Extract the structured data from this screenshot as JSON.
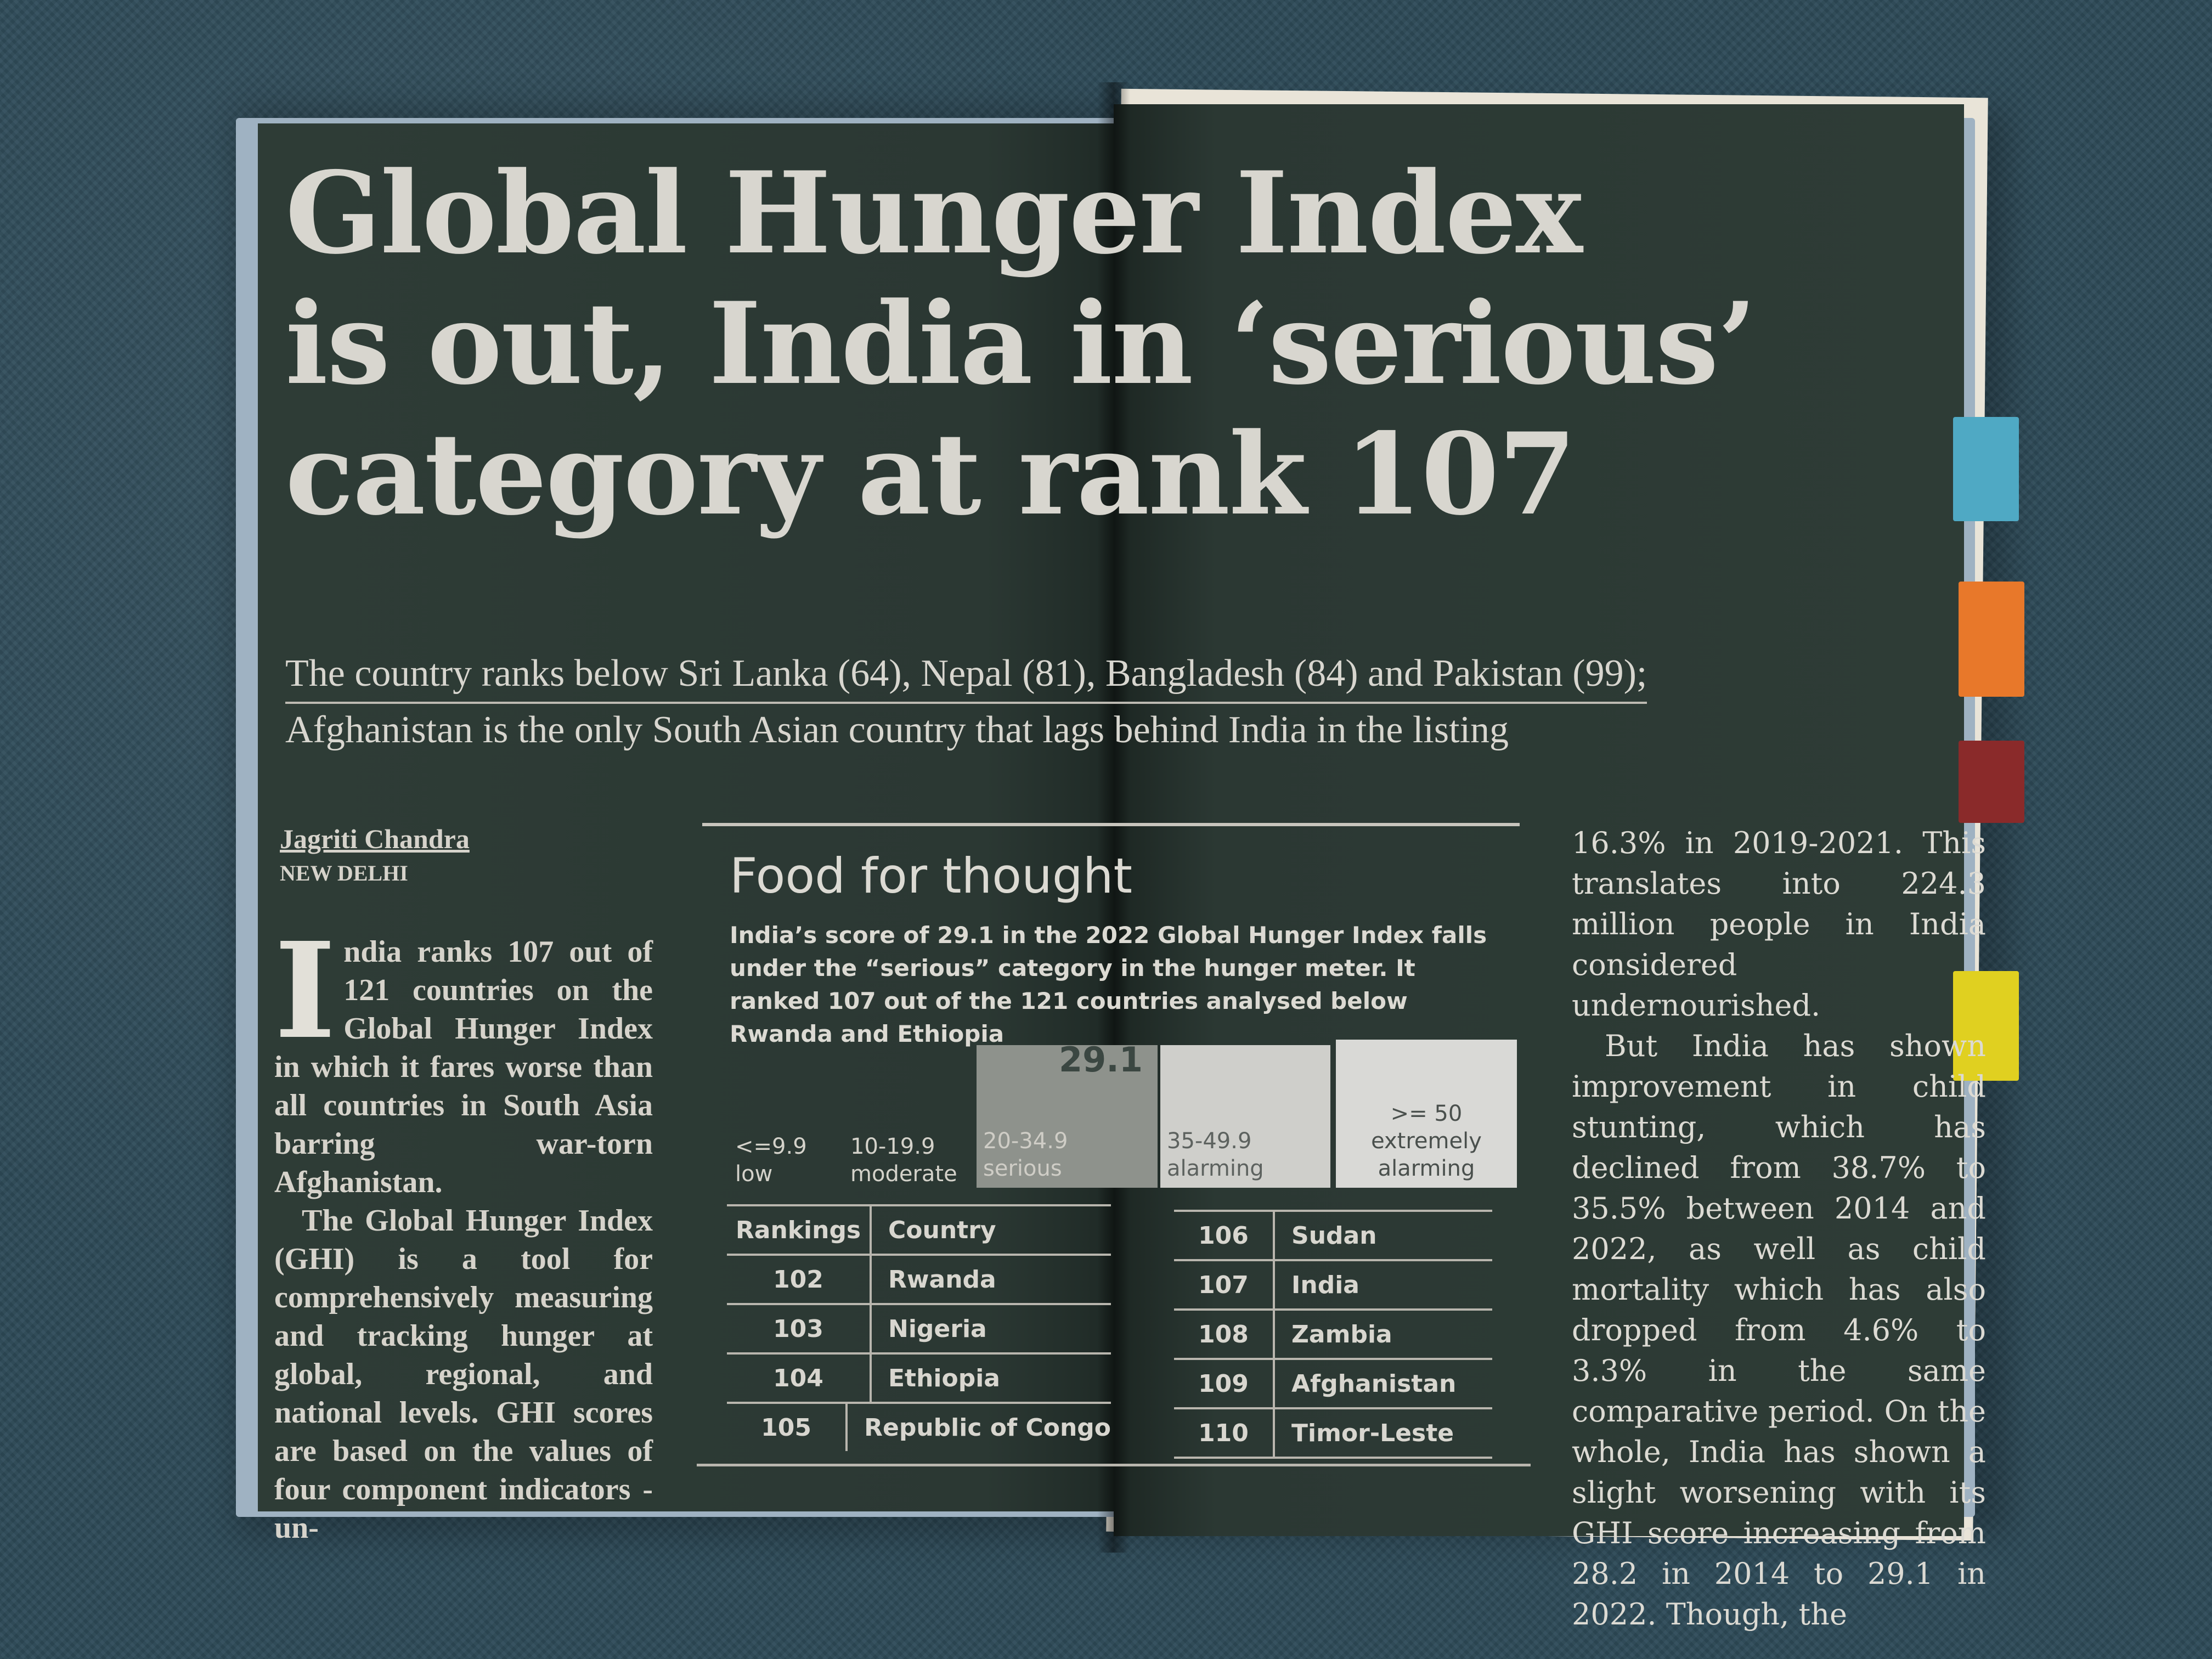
{
  "article": {
    "headline_lines": [
      "Global Hunger Index",
      "is out, India in ‘serious’",
      "category at rank 107"
    ],
    "deck_lines": [
      "The country ranks below Sri Lanka (64), Nepal (81), Bangladesh (84) and Pakistan (99);",
      "Afghanistan is the only South Asian country that lags behind India in the listing"
    ],
    "byline": {
      "author": "Jagriti Chandra",
      "location": "NEW DELHI"
    },
    "left_column": {
      "dropcap": "I",
      "paragraphs": [
        "ndia ranks 107 out of 121 countries on the Global Hunger Index in which it fares worse than all countries in South Asia barring war-torn Afghanistan.",
        "The Global Hunger Index (GHI) is a tool for comprehensively measuring and tracking hunger at global, regional, and national levels. GHI scores are based on the values of four component indicators - un-"
      ]
    },
    "right_column": {
      "paragraphs": [
        "16.3% in 2019-2021. This translates into 224.3 million people in India considered undernourished.",
        "But India has shown improvement in child stunting, which has declined from 38.7% to 35.5% between 2014 and 2022, as well as child mortality which has also dropped from 4.6% to 3.3% in the same comparative period. On the whole, India has shown a slight worsening with its GHI score increasing from 28.2 in 2014 to 29.1 in 2022. Though, the"
      ]
    }
  },
  "infographic": {
    "title": "Food for thought",
    "intro": "India’s score of 29.1 in the 2022 Global Hunger Index falls under the “serious” category in the hunger meter. It ranked 107 out of the 121 countries analysed below Rwanda and Ethiopia",
    "marker_label": "29.1",
    "categories": [
      {
        "range": "<=9.9",
        "label": "low"
      },
      {
        "range": "10-19.9",
        "label": "moderate"
      },
      {
        "range": "20-34.9",
        "label": "serious"
      },
      {
        "range": "35-49.9",
        "label": "alarming"
      },
      {
        "range": ">= 50",
        "label": "extremely alarming"
      }
    ],
    "table_headers": {
      "rank": "Rankings",
      "country": "Country"
    },
    "rankings_left": [
      {
        "rank": "102",
        "country": "Rwanda"
      },
      {
        "rank": "103",
        "country": "Nigeria"
      },
      {
        "rank": "104",
        "country": "Ethiopia"
      },
      {
        "rank": "105",
        "country": "Republic of Congo"
      }
    ],
    "rankings_right": [
      {
        "rank": "106",
        "country": "Sudan"
      },
      {
        "rank": "107",
        "country": "India"
      },
      {
        "rank": "108",
        "country": "Zambia"
      },
      {
        "rank": "109",
        "country": "Afghanistan"
      },
      {
        "rank": "110",
        "country": "Timor-Leste"
      }
    ]
  },
  "colors": {
    "page": "#2c3a34",
    "ink": "#d8d6cf",
    "background_fabric": "#2f4c5a",
    "tabs": [
      "#4fa9c4",
      "#e8782a",
      "#8a2a2a",
      "#e0d020"
    ]
  }
}
